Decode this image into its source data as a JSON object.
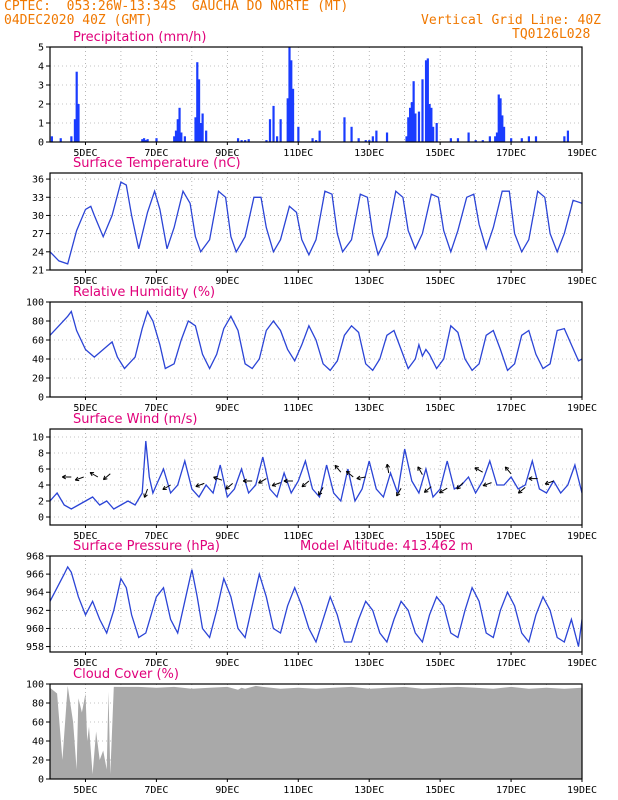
{
  "header": {
    "line1_left": "CPTEC:  053:26W-13:34S  GAUCHA DO NORTE (MT)",
    "line2_left": "04DEC2020 40Z (GMT)",
    "line2_right": "Vertical Grid Line: 40Z",
    "line3_right": "TQ0126L028"
  },
  "colors": {
    "line": "#2b44d6",
    "bar": "#1a3cff",
    "cloud": "#a9a9a9",
    "title": "#e0007a",
    "header": "#f07800",
    "grid": "#888888"
  },
  "chart_data": [
    {
      "id": "precip",
      "type": "bar",
      "title": "Precipitation (mm/h)",
      "ylim": [
        0,
        5
      ],
      "yticks": [
        0,
        1,
        2,
        3,
        4,
        5
      ],
      "xticks": [
        "5DEC",
        "7DEC",
        "9DEC",
        "11DEC",
        "13DEC",
        "15DEC",
        "17DEC",
        "19DEC"
      ],
      "xlim_days": [
        4,
        19
      ],
      "x": [
        4.05,
        4.3,
        4.6,
        4.7,
        4.75,
        4.8,
        6.6,
        6.65,
        6.7,
        6.75,
        7.0,
        7.5,
        7.55,
        7.6,
        7.65,
        7.7,
        7.8,
        8.1,
        8.15,
        8.2,
        8.25,
        8.3,
        8.4,
        9.3,
        9.4,
        9.5,
        9.6,
        10.1,
        10.2,
        10.3,
        10.4,
        10.5,
        10.7,
        10.75,
        10.8,
        10.85,
        11.0,
        11.4,
        11.5,
        11.6,
        12.3,
        12.5,
        12.7,
        12.9,
        13.0,
        13.1,
        13.2,
        13.5,
        14.05,
        14.1,
        14.15,
        14.2,
        14.25,
        14.3,
        14.4,
        14.5,
        14.6,
        14.65,
        14.7,
        14.75,
        14.8,
        14.9,
        15.3,
        15.5,
        15.8,
        16.0,
        16.2,
        16.4,
        16.55,
        16.6,
        16.65,
        16.7,
        16.75,
        16.8,
        17.0,
        17.3,
        17.5,
        17.7,
        18.5,
        18.6
      ],
      "values": [
        0.3,
        0.2,
        0.3,
        1.2,
        3.7,
        2.0,
        0.15,
        0.2,
        0.1,
        0.15,
        0.2,
        0.3,
        0.6,
        1.2,
        1.8,
        0.5,
        0.3,
        1.3,
        4.2,
        3.3,
        1.0,
        1.5,
        0.6,
        0.2,
        0.1,
        0.1,
        0.15,
        0.1,
        1.2,
        1.9,
        0.3,
        1.2,
        2.3,
        5.0,
        4.3,
        2.8,
        0.8,
        0.2,
        0.1,
        0.6,
        1.3,
        0.8,
        0.2,
        0.1,
        0.1,
        0.3,
        0.6,
        0.5,
        0.3,
        1.3,
        1.8,
        2.1,
        3.2,
        1.5,
        1.6,
        3.3,
        4.3,
        4.4,
        2.0,
        1.8,
        0.8,
        1.0,
        0.2,
        0.2,
        0.5,
        0.1,
        0.1,
        0.3,
        0.3,
        0.5,
        2.5,
        2.3,
        1.4,
        0.8,
        0.2,
        0.2,
        0.3,
        0.3,
        0.3,
        0.6
      ]
    },
    {
      "id": "temp",
      "type": "line",
      "title": "Surface Temperature (nC)",
      "ylim": [
        21,
        37
      ],
      "yticks": [
        21,
        24,
        27,
        30,
        33,
        36
      ],
      "xticks": [
        "5DEC",
        "7DEC",
        "9DEC",
        "11DEC",
        "13DEC",
        "15DEC",
        "17DEC",
        "19DEC"
      ],
      "xlim_days": [
        4,
        19
      ],
      "x": [
        4.0,
        4.25,
        4.5,
        4.75,
        5.0,
        5.15,
        5.25,
        5.5,
        5.75,
        6.0,
        6.15,
        6.3,
        6.5,
        6.75,
        6.95,
        7.1,
        7.3,
        7.5,
        7.75,
        7.95,
        8.1,
        8.25,
        8.5,
        8.75,
        8.95,
        9.1,
        9.25,
        9.5,
        9.75,
        9.95,
        10.1,
        10.3,
        10.5,
        10.75,
        10.95,
        11.1,
        11.3,
        11.5,
        11.75,
        11.95,
        12.1,
        12.25,
        12.5,
        12.75,
        12.95,
        13.1,
        13.25,
        13.5,
        13.75,
        13.95,
        14.1,
        14.3,
        14.5,
        14.75,
        14.95,
        15.1,
        15.3,
        15.5,
        15.75,
        15.95,
        16.1,
        16.3,
        16.5,
        16.75,
        16.95,
        17.1,
        17.3,
        17.5,
        17.75,
        17.95,
        18.1,
        18.3,
        18.5,
        18.75,
        19.0
      ],
      "values": [
        24.0,
        22.5,
        22.0,
        27.5,
        31.0,
        31.5,
        30.0,
        26.5,
        30.0,
        35.5,
        35.0,
        30.0,
        24.5,
        30.5,
        34.0,
        31.0,
        24.5,
        28.0,
        34.0,
        32.0,
        26.5,
        24.0,
        26.0,
        34.0,
        33.0,
        26.5,
        24.0,
        26.5,
        33.0,
        33.0,
        28.0,
        24.0,
        26.0,
        31.5,
        30.5,
        26.0,
        23.5,
        26.0,
        34.0,
        33.5,
        27.0,
        24.0,
        26.0,
        33.5,
        33.0,
        27.0,
        23.5,
        26.5,
        34.0,
        33.0,
        27.5,
        24.5,
        27.0,
        33.5,
        33.0,
        27.5,
        24.0,
        27.5,
        33.0,
        33.5,
        28.5,
        24.5,
        28.0,
        34.0,
        34.0,
        27.0,
        24.0,
        26.0,
        34.0,
        33.0,
        27.0,
        24.0,
        27.0,
        32.5,
        32.0
      ]
    },
    {
      "id": "rh",
      "type": "line",
      "title": "Relative Humidity (%)",
      "ylim": [
        0,
        100
      ],
      "yticks": [
        0,
        20,
        40,
        60,
        80,
        100
      ],
      "xticks": [
        "5DEC",
        "7DEC",
        "9DEC",
        "11DEC",
        "13DEC",
        "15DEC",
        "17DEC",
        "19DEC"
      ],
      "xlim_days": [
        4,
        19
      ],
      "x": [
        4.0,
        4.25,
        4.5,
        4.6,
        4.75,
        5.0,
        5.25,
        5.5,
        5.75,
        5.9,
        6.1,
        6.4,
        6.6,
        6.75,
        6.9,
        7.1,
        7.25,
        7.5,
        7.7,
        7.9,
        8.1,
        8.3,
        8.5,
        8.7,
        8.9,
        9.1,
        9.3,
        9.5,
        9.7,
        9.9,
        10.1,
        10.3,
        10.5,
        10.7,
        10.9,
        11.1,
        11.3,
        11.5,
        11.7,
        11.9,
        12.1,
        12.3,
        12.5,
        12.7,
        12.9,
        13.1,
        13.3,
        13.5,
        13.7,
        13.9,
        14.1,
        14.3,
        14.4,
        14.5,
        14.6,
        14.7,
        14.9,
        15.1,
        15.3,
        15.5,
        15.7,
        15.9,
        16.1,
        16.3,
        16.5,
        16.7,
        16.9,
        17.1,
        17.3,
        17.5,
        17.7,
        17.9,
        18.1,
        18.3,
        18.5,
        18.7,
        18.9,
        19.0
      ],
      "values": [
        65,
        75,
        85,
        90,
        70,
        50,
        42,
        50,
        58,
        42,
        30,
        42,
        72,
        90,
        80,
        55,
        30,
        35,
        60,
        80,
        75,
        45,
        30,
        45,
        72,
        85,
        70,
        35,
        30,
        40,
        70,
        80,
        70,
        50,
        38,
        55,
        75,
        60,
        35,
        28,
        38,
        65,
        75,
        68,
        35,
        28,
        40,
        65,
        70,
        50,
        30,
        40,
        55,
        43,
        50,
        45,
        30,
        40,
        75,
        68,
        40,
        28,
        35,
        65,
        70,
        50,
        28,
        35,
        65,
        70,
        45,
        30,
        35,
        70,
        72,
        55,
        38,
        40
      ]
    },
    {
      "id": "wind",
      "type": "line",
      "title": "Surface Wind (m/s)",
      "ylim": [
        -1,
        11
      ],
      "yticks": [
        0,
        2,
        4,
        6,
        8,
        10
      ],
      "xticks": [
        "5DEC",
        "7DEC",
        "9DEC",
        "11DEC",
        "13DEC",
        "15DEC",
        "17DEC",
        "19DEC"
      ],
      "xlim_days": [
        4,
        19
      ],
      "x": [
        4.0,
        4.2,
        4.4,
        4.6,
        4.8,
        5.0,
        5.2,
        5.4,
        5.6,
        5.8,
        6.0,
        6.2,
        6.4,
        6.6,
        6.7,
        6.8,
        6.9,
        7.0,
        7.2,
        7.4,
        7.6,
        7.8,
        8.0,
        8.2,
        8.4,
        8.6,
        8.8,
        9.0,
        9.2,
        9.4,
        9.6,
        9.8,
        10.0,
        10.2,
        10.4,
        10.6,
        10.8,
        11.0,
        11.2,
        11.4,
        11.6,
        11.8,
        12.0,
        12.2,
        12.4,
        12.6,
        12.8,
        13.0,
        13.2,
        13.4,
        13.6,
        13.8,
        14.0,
        14.2,
        14.4,
        14.6,
        14.8,
        15.0,
        15.2,
        15.4,
        15.6,
        15.8,
        16.0,
        16.2,
        16.4,
        16.6,
        16.8,
        17.0,
        17.2,
        17.4,
        17.6,
        17.8,
        18.0,
        18.2,
        18.4,
        18.6,
        18.8,
        19.0
      ],
      "values": [
        2.0,
        3.0,
        1.5,
        1.0,
        1.5,
        2.0,
        2.5,
        1.5,
        2.0,
        1.0,
        1.5,
        2.0,
        1.5,
        3.0,
        9.5,
        5.0,
        3.0,
        4.0,
        6.0,
        3.0,
        4.0,
        7.0,
        3.5,
        2.5,
        4.0,
        3.0,
        6.5,
        2.5,
        3.5,
        6.0,
        3.0,
        4.0,
        7.5,
        3.5,
        2.5,
        5.5,
        3.0,
        4.5,
        7.0,
        3.5,
        2.5,
        6.5,
        3.0,
        2.0,
        6.0,
        2.0,
        3.5,
        7.0,
        3.5,
        2.5,
        5.5,
        3.0,
        8.5,
        4.5,
        3.0,
        6.0,
        2.5,
        3.5,
        7.0,
        3.5,
        4.0,
        5.0,
        3.0,
        4.5,
        7.0,
        4.0,
        4.0,
        5.0,
        3.5,
        4.0,
        7.0,
        3.5,
        3.0,
        4.5,
        3.0,
        4.0,
        6.5,
        3.0
      ],
      "arrows": [
        {
          "x": 4.6,
          "y": 5.0,
          "angle": 180
        },
        {
          "x": 4.95,
          "y": 5.0,
          "angle": 200
        },
        {
          "x": 5.35,
          "y": 5.0,
          "angle": 150
        },
        {
          "x": 5.7,
          "y": 5.4,
          "angle": 220
        },
        {
          "x": 6.75,
          "y": 3.5,
          "angle": 250
        },
        {
          "x": 7.4,
          "y": 4.0,
          "angle": 210
        },
        {
          "x": 8.35,
          "y": 4.2,
          "angle": 200
        },
        {
          "x": 8.85,
          "y": 4.6,
          "angle": 160
        },
        {
          "x": 9.15,
          "y": 4.2,
          "angle": 220
        },
        {
          "x": 9.7,
          "y": 4.5,
          "angle": 180
        },
        {
          "x": 10.1,
          "y": 4.8,
          "angle": 210
        },
        {
          "x": 10.5,
          "y": 4.3,
          "angle": 200
        },
        {
          "x": 10.85,
          "y": 4.5,
          "angle": 180
        },
        {
          "x": 11.3,
          "y": 4.5,
          "angle": 220
        },
        {
          "x": 11.7,
          "y": 3.7,
          "angle": 240
        },
        {
          "x": 12.2,
          "y": 5.6,
          "angle": 130
        },
        {
          "x": 12.55,
          "y": 5.0,
          "angle": 140
        },
        {
          "x": 12.9,
          "y": 5.0,
          "angle": 190
        },
        {
          "x": 13.55,
          "y": 5.5,
          "angle": 100
        },
        {
          "x": 13.9,
          "y": 3.6,
          "angle": 240
        },
        {
          "x": 14.5,
          "y": 5.3,
          "angle": 120
        },
        {
          "x": 14.75,
          "y": 3.8,
          "angle": 220
        },
        {
          "x": 15.2,
          "y": 3.6,
          "angle": 210
        },
        {
          "x": 15.65,
          "y": 4.3,
          "angle": 225
        },
        {
          "x": 16.2,
          "y": 5.6,
          "angle": 150
        },
        {
          "x": 16.45,
          "y": 4.3,
          "angle": 200
        },
        {
          "x": 17.0,
          "y": 5.4,
          "angle": 130
        },
        {
          "x": 17.4,
          "y": 3.7,
          "angle": 220
        },
        {
          "x": 17.75,
          "y": 4.8,
          "angle": 180
        },
        {
          "x": 18.2,
          "y": 4.5,
          "angle": 200
        }
      ]
    },
    {
      "id": "pressure",
      "type": "line",
      "title": "Surface Pressure (hPa)",
      "subtitle": "Model Altitude: 413.462 m",
      "ylim": [
        957.4,
        968
      ],
      "yticks": [
        958,
        960,
        962,
        964,
        966,
        968
      ],
      "xticks": [
        "5DEC",
        "7DEC",
        "9DEC",
        "11DEC",
        "13DEC",
        "15DEC",
        "17DEC",
        "19DEC"
      ],
      "xlim_days": [
        4,
        19
      ],
      "x": [
        4.0,
        4.2,
        4.4,
        4.5,
        4.6,
        4.8,
        5.0,
        5.2,
        5.4,
        5.6,
        5.8,
        6.0,
        6.15,
        6.3,
        6.5,
        6.7,
        6.85,
        7.0,
        7.2,
        7.4,
        7.6,
        7.8,
        8.0,
        8.15,
        8.3,
        8.5,
        8.7,
        8.9,
        9.1,
        9.3,
        9.5,
        9.7,
        9.9,
        10.1,
        10.3,
        10.5,
        10.7,
        10.9,
        11.1,
        11.3,
        11.5,
        11.7,
        11.9,
        12.1,
        12.3,
        12.5,
        12.7,
        12.9,
        13.1,
        13.3,
        13.5,
        13.7,
        13.9,
        14.1,
        14.3,
        14.5,
        14.7,
        14.9,
        15.1,
        15.3,
        15.5,
        15.7,
        15.9,
        16.1,
        16.3,
        16.5,
        16.7,
        16.9,
        17.1,
        17.3,
        17.5,
        17.7,
        17.9,
        18.1,
        18.3,
        18.5,
        18.7,
        18.9,
        19.0
      ],
      "values": [
        963.0,
        964.5,
        966.0,
        966.8,
        966.2,
        963.5,
        961.5,
        963.0,
        961.0,
        959.5,
        962.0,
        965.5,
        964.5,
        961.5,
        959.0,
        959.5,
        961.5,
        963.5,
        964.5,
        961.0,
        959.5,
        963.0,
        966.5,
        963.5,
        960.0,
        959.0,
        962.0,
        965.5,
        963.5,
        960.0,
        959.0,
        962.5,
        966.0,
        963.5,
        960.0,
        959.5,
        962.5,
        964.5,
        962.5,
        960.0,
        958.5,
        961.0,
        963.5,
        961.5,
        958.5,
        958.5,
        961.0,
        963.0,
        962.0,
        959.5,
        958.5,
        961.0,
        963.0,
        962.0,
        959.5,
        958.5,
        961.5,
        963.5,
        962.5,
        959.5,
        959.0,
        962.0,
        964.5,
        963.0,
        959.5,
        959.0,
        962.0,
        964.0,
        962.5,
        959.5,
        958.5,
        961.5,
        963.5,
        962.0,
        959.0,
        958.5,
        961.0,
        958.0,
        961.0
      ]
    },
    {
      "id": "cloud",
      "type": "area",
      "title": "Cloud Cover (%)",
      "ylim": [
        0,
        100
      ],
      "yticks": [
        0,
        20,
        40,
        60,
        80,
        100
      ],
      "xticks": [
        "5DEC",
        "7DEC",
        "9DEC",
        "11DEC",
        "13DEC",
        "15DEC",
        "17DEC",
        "19DEC"
      ],
      "xlim_days": [
        4,
        19
      ],
      "x": [
        4.0,
        4.2,
        4.35,
        4.5,
        4.65,
        4.75,
        4.8,
        4.9,
        5.0,
        5.05,
        5.1,
        5.2,
        5.3,
        5.4,
        5.5,
        5.6,
        5.65,
        5.7,
        5.8,
        6.0,
        6.5,
        7.0,
        7.5,
        8.0,
        8.5,
        9.0,
        9.3,
        9.4,
        9.5,
        9.8,
        10.0,
        10.5,
        11.0,
        11.5,
        12.0,
        12.5,
        13.0,
        13.5,
        14.0,
        14.5,
        15.0,
        15.5,
        16.0,
        16.5,
        17.0,
        17.5,
        18.0,
        18.5,
        19.0
      ],
      "values": [
        96,
        90,
        20,
        98,
        60,
        10,
        85,
        70,
        90,
        40,
        55,
        5,
        50,
        20,
        30,
        10,
        92,
        5,
        97,
        97,
        97,
        96,
        97,
        95,
        96,
        97,
        94,
        96,
        95,
        98,
        97,
        95,
        96,
        95,
        96,
        97,
        95,
        96,
        97,
        95,
        96,
        97,
        96,
        95,
        97,
        95,
        96,
        95,
        96
      ]
    }
  ]
}
